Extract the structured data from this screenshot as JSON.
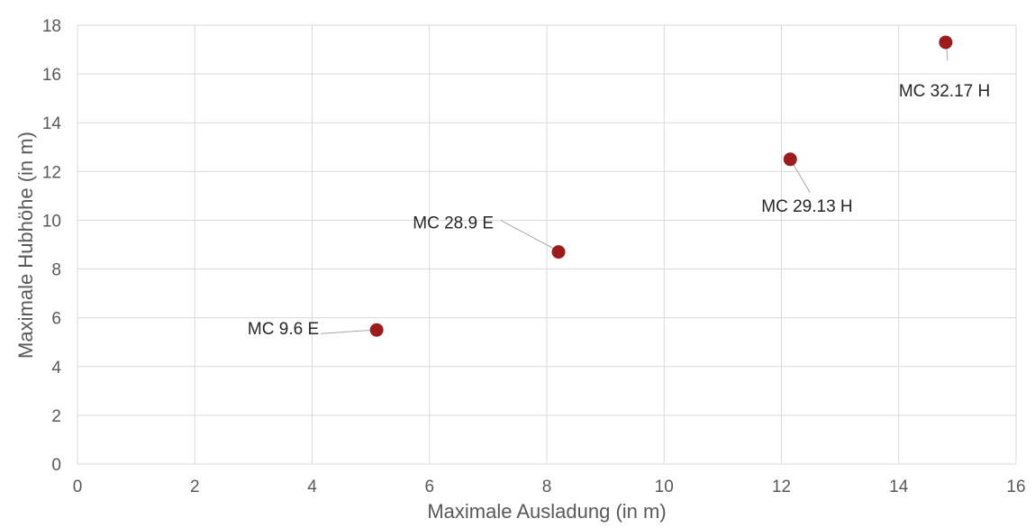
{
  "chart_data": {
    "type": "scatter",
    "title": "",
    "xlabel": "Maximale Ausladung (in m)",
    "ylabel": "Maximale Hubhöhe (in m)",
    "xlim": [
      0,
      16
    ],
    "ylim": [
      0,
      18
    ],
    "xticks": [
      "0",
      "2",
      "4",
      "6",
      "8",
      "10",
      "12",
      "14",
      "16"
    ],
    "yticks": [
      "0",
      "2",
      "4",
      "6",
      "8",
      "10",
      "12",
      "14",
      "16",
      "18"
    ],
    "grid": true,
    "legend": "none",
    "point_color": "#9b1c1c",
    "series": [
      {
        "points": [
          {
            "label": "MC 9.6 E",
            "x": 5.1,
            "y": 5.5
          },
          {
            "label": "MC 28.9 E",
            "x": 8.2,
            "y": 8.7
          },
          {
            "label": "MC 29.13 H",
            "x": 12.15,
            "y": 12.5
          },
          {
            "label": "MC 32.17 H",
            "x": 14.8,
            "y": 17.3
          }
        ]
      }
    ]
  }
}
